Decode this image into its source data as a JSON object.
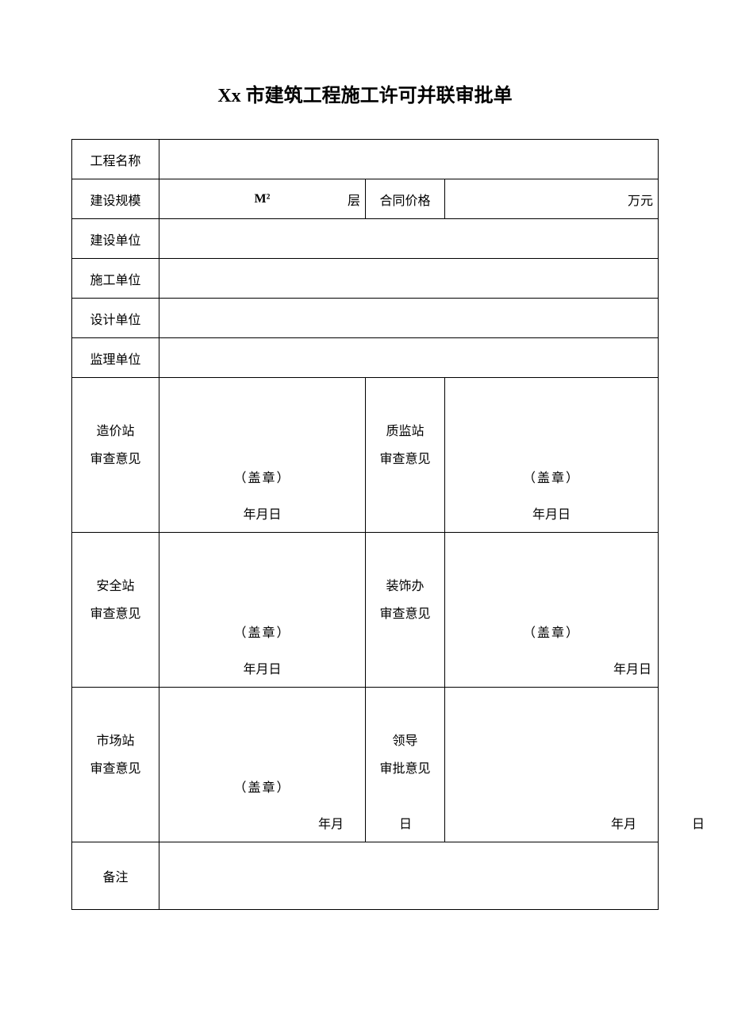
{
  "title": "Xx 市建筑工程施工许可并联审批单",
  "rows": {
    "project_name_label": "工程名称",
    "scale_label": "建设规模",
    "scale_unit": "M²",
    "scale_floor": "层",
    "contract_price_label": "合同价格",
    "contract_price_unit": "万元",
    "build_unit_label": "建设单位",
    "construction_unit_label": "施工单位",
    "design_unit_label": "设计单位",
    "supervision_unit_label": "监理单位"
  },
  "opinions": {
    "cost": {
      "label1": "造价站",
      "label2": "审查意见",
      "stamp": "（盖章）",
      "date": "年月日"
    },
    "quality": {
      "label1": "质监站",
      "label2": "审查意见",
      "stamp": "（盖章）",
      "date": "年月日"
    },
    "safety": {
      "label1": "安全站",
      "label2": "审查意见",
      "stamp": "（盖章）",
      "date": "年月日"
    },
    "decoration": {
      "label1": "装饰办",
      "label2": "审查意见",
      "stamp": "（盖章）",
      "date": "年月日"
    },
    "market": {
      "label1": "市场站",
      "label2": "审查意见",
      "stamp": "（盖章）",
      "ym": "年月",
      "d": "日"
    },
    "leader": {
      "label1": "领导",
      "label2": "审批意见",
      "ym": "年月",
      "d": "日"
    }
  },
  "remark_label": "备注"
}
